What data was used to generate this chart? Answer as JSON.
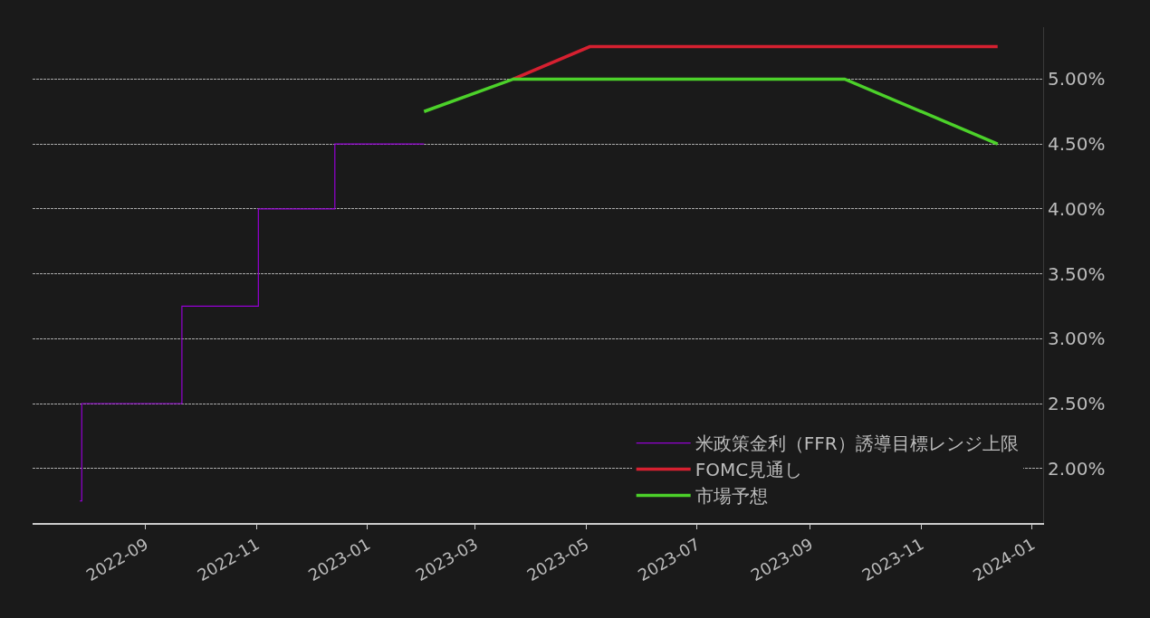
{
  "chart_data": {
    "type": "line",
    "series": [
      {
        "name": "米政策金利（FFR）誘導目標レンジ上限",
        "type": "step",
        "color": "#9400d3",
        "x": [
          "2022-07-27",
          "2022-07-28",
          "2022-09-21",
          "2022-11-02",
          "2022-12-14",
          "2023-02-01"
        ],
        "values": [
          1.75,
          2.5,
          3.25,
          4.0,
          4.5,
          4.5
        ]
      },
      {
        "name": "FOMC見通し",
        "color": "#d62030",
        "x": [
          "2023-03-22",
          "2023-05-03",
          "2023-12-13"
        ],
        "values": [
          5.0,
          5.25,
          5.25
        ]
      },
      {
        "name": "市場予想",
        "color": "#4cd12a",
        "x": [
          "2023-02-01",
          "2023-03-22",
          "2023-09-20",
          "2023-12-13"
        ],
        "values": [
          4.75,
          5.0,
          5.0,
          4.5
        ]
      }
    ],
    "xlim": [
      "2022-07-01",
      "2024-01-07"
    ],
    "xticks": [
      "2022-09",
      "2022-11",
      "2023-01",
      "2023-03",
      "2023-05",
      "2023-07",
      "2023-09",
      "2023-11",
      "2024-01"
    ],
    "ylim": [
      1.58,
      5.4
    ],
    "yticks": [
      {
        "value": 2.0,
        "label": "2.00%"
      },
      {
        "value": 2.5,
        "label": "2.50%"
      },
      {
        "value": 3.0,
        "label": "3.00%"
      },
      {
        "value": 3.5,
        "label": "3.50%"
      },
      {
        "value": 4.0,
        "label": "4.00%"
      },
      {
        "value": 4.5,
        "label": "4.50%"
      },
      {
        "value": 5.0,
        "label": "5.00%"
      }
    ],
    "grid": "y",
    "legend": "bottom right",
    "marker": "none",
    "line_style": "solid"
  }
}
